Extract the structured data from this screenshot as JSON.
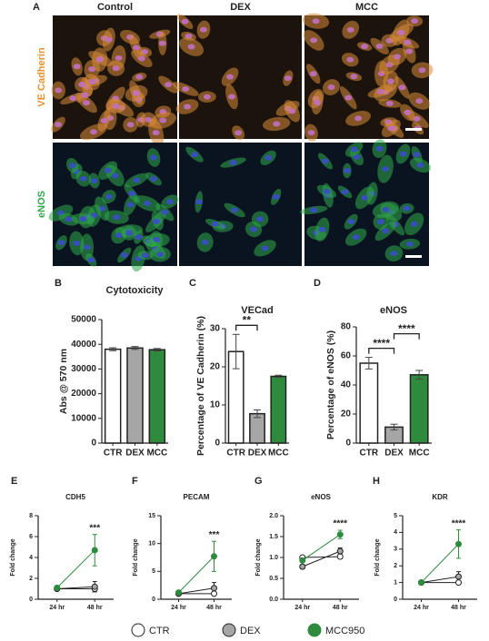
{
  "panel_a": {
    "label": "A",
    "columns": [
      "Control",
      "DEX",
      "MCC"
    ],
    "rows": [
      "VE Cadherin",
      "eNOS"
    ]
  },
  "legend": [
    {
      "name": "CTR",
      "color": "#ffffff"
    },
    {
      "name": "DEX",
      "color": "#a6a6a6"
    },
    {
      "name": "MCC950",
      "color": "#2e8b3e"
    }
  ],
  "chart_data": [
    {
      "type": "bar",
      "label": "B",
      "title": "Cytotoxicity",
      "y_label": "Abs @ 570 nm",
      "categories": [
        "CTR",
        "DEX",
        "MCC"
      ],
      "values": [
        38000,
        38500,
        37800
      ],
      "errors": [
        600,
        600,
        500
      ],
      "colors": [
        "#ffffff",
        "#a6a6a6",
        "#2e8b3e"
      ],
      "ylim": [
        0,
        50000
      ],
      "yticks": [
        0,
        10000,
        20000,
        30000,
        40000,
        50000
      ],
      "annotations": []
    },
    {
      "type": "bar",
      "label": "C",
      "title": "VECad",
      "y_label": "Percentage of VE Cadherin (%)",
      "categories": [
        "CTR",
        "DEX",
        "MCC"
      ],
      "values": [
        24,
        7.7,
        17.5
      ],
      "errors": [
        4.5,
        1,
        0.3
      ],
      "colors": [
        "#ffffff",
        "#a6a6a6",
        "#2e8b3e"
      ],
      "ylim": [
        0,
        30
      ],
      "yticks": [
        0,
        10,
        20,
        30
      ],
      "annotations": [
        {
          "text": "**",
          "between": [
            "CTR",
            "DEX"
          ]
        }
      ]
    },
    {
      "type": "bar",
      "label": "D",
      "title": "eNOS",
      "y_label": "Percentage of eNOS (%)",
      "categories": [
        "CTR",
        "DEX",
        "MCC"
      ],
      "values": [
        55,
        11,
        47
      ],
      "errors": [
        4,
        2,
        3
      ],
      "colors": [
        "#ffffff",
        "#a6a6a6",
        "#2e8b3e"
      ],
      "ylim": [
        0,
        80
      ],
      "yticks": [
        0,
        20,
        40,
        60,
        80
      ],
      "annotations": [
        {
          "text": "****",
          "between": [
            "CTR",
            "DEX"
          ]
        },
        {
          "text": "****",
          "between": [
            "DEX",
            "MCC"
          ]
        }
      ]
    },
    {
      "type": "line",
      "label": "E",
      "title": "CDH5",
      "y_label": "Fold change",
      "categories": [
        "24 hr",
        "48 hr"
      ],
      "series": [
        {
          "color": "#ffffff",
          "values": [
            1,
            1
          ],
          "errors": [
            0.05,
            0.2
          ]
        },
        {
          "color": "#a6a6a6",
          "values": [
            1,
            1.2
          ],
          "errors": [
            0.05,
            0.5
          ]
        },
        {
          "color": "#2e8b3e",
          "values": [
            1.1,
            4.7
          ],
          "errors": [
            0.1,
            1.5
          ]
        }
      ],
      "ylim": [
        0,
        8
      ],
      "yticks": [
        0,
        2,
        4,
        6,
        8
      ],
      "annotations": [
        {
          "text": "***",
          "at": "48 hr"
        }
      ]
    },
    {
      "type": "line",
      "label": "F",
      "title": "PECAM",
      "y_label": "Fold change",
      "categories": [
        "24 hr",
        "48 hr"
      ],
      "series": [
        {
          "color": "#ffffff",
          "values": [
            1,
            1
          ],
          "errors": [
            0.1,
            0.3
          ]
        },
        {
          "color": "#a6a6a6",
          "values": [
            1,
            2
          ],
          "errors": [
            0.1,
            1
          ]
        },
        {
          "color": "#2e8b3e",
          "values": [
            1.2,
            7.7
          ],
          "errors": [
            0.2,
            2.7
          ]
        }
      ],
      "ylim": [
        0,
        15
      ],
      "yticks": [
        0,
        5,
        10,
        15
      ],
      "annotations": [
        {
          "text": "***",
          "at": "48 hr"
        }
      ]
    },
    {
      "type": "line",
      "label": "G",
      "title": "eNOS",
      "y_label": "Fold change",
      "categories": [
        "24 hr",
        "48 hr"
      ],
      "series": [
        {
          "color": "#ffffff",
          "values": [
            1,
            1.02
          ],
          "errors": [
            0.03,
            0.05
          ]
        },
        {
          "color": "#a6a6a6",
          "values": [
            0.78,
            1.15
          ],
          "errors": [
            0.05,
            0.08
          ]
        },
        {
          "color": "#2e8b3e",
          "values": [
            0.93,
            1.55
          ],
          "errors": [
            0.05,
            0.1
          ]
        }
      ],
      "ylim": [
        0,
        2
      ],
      "yticks": [
        {
          "value": 0,
          "label": "0.0"
        },
        0.5,
        {
          "value": 1,
          "label": "1.0"
        },
        1.5,
        {
          "value": 2,
          "label": "2.0"
        }
      ],
      "annotations": [
        {
          "text": "****",
          "at": "48 hr"
        }
      ]
    },
    {
      "type": "line",
      "label": "H",
      "title": "KDR",
      "y_label": "Fold change",
      "categories": [
        "24 hr",
        "48 hr"
      ],
      "series": [
        {
          "color": "#ffffff",
          "values": [
            1,
            1
          ],
          "errors": [
            0.05,
            0.1
          ]
        },
        {
          "color": "#a6a6a6",
          "values": [
            1,
            1.35
          ],
          "errors": [
            0.05,
            0.3
          ]
        },
        {
          "color": "#2e8b3e",
          "values": [
            1,
            3.3
          ],
          "errors": [
            0.05,
            0.85
          ]
        }
      ],
      "ylim": [
        0,
        5
      ],
      "yticks": [
        0,
        1,
        2,
        3,
        4,
        5
      ],
      "annotations": [
        {
          "text": "****",
          "at": "48 hr"
        }
      ]
    }
  ]
}
